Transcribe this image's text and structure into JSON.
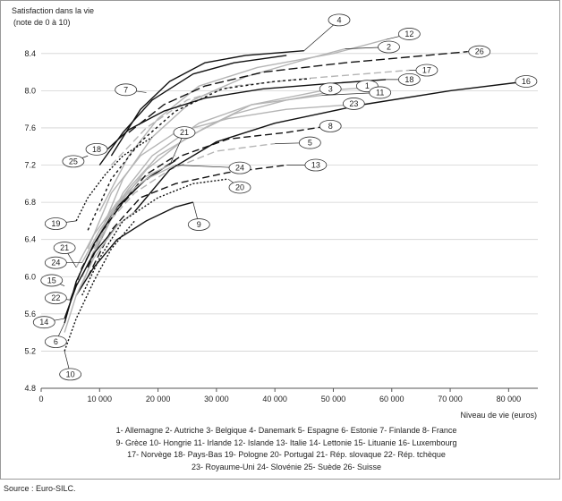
{
  "chart_data": {
    "type": "line",
    "title": "",
    "ylabel_line1": "Satisfaction dans la vie",
    "ylabel_line2": "(note de 0 à 10)",
    "xlabel": "Niveau de vie (euros)",
    "xlim": [
      0,
      85000
    ],
    "ylim": [
      4.8,
      8.6
    ],
    "x_ticks": [
      0,
      10000,
      20000,
      30000,
      40000,
      50000,
      60000,
      70000,
      80000
    ],
    "x_tick_labels": [
      "0",
      "10 000",
      "20 000",
      "30 000",
      "40 000",
      "50 000",
      "60 000",
      "70 000",
      "80 000"
    ],
    "y_ticks": [
      4.8,
      5.2,
      5.6,
      6.0,
      6.4,
      6.8,
      7.2,
      7.6,
      8.0,
      8.4
    ],
    "y_tick_labels": [
      "4.8",
      "5.2",
      "5.6",
      "6.0",
      "6.4",
      "6.8",
      "7.2",
      "7.6",
      "8.0",
      "8.4"
    ],
    "grid": "horizontal",
    "series": [
      {
        "id": "1",
        "name": "Allemagne",
        "color": "#b5b5b5",
        "dash": "",
        "points": [
          [
            7000,
            5.9
          ],
          [
            11000,
            6.6
          ],
          [
            15000,
            6.95
          ],
          [
            20000,
            7.3
          ],
          [
            28000,
            7.6
          ],
          [
            36000,
            7.85
          ],
          [
            48000,
            8.0
          ],
          [
            55000,
            8.03
          ]
        ],
        "label_pos": [
          55800,
          8.05
        ]
      },
      {
        "id": "2",
        "name": "Autriche",
        "color": "#b5b5b5",
        "dash": "",
        "points": [
          [
            9000,
            6.3
          ],
          [
            14000,
            7.05
          ],
          [
            19000,
            7.5
          ],
          [
            26000,
            7.9
          ],
          [
            35000,
            8.15
          ],
          [
            46000,
            8.35
          ],
          [
            52000,
            8.45
          ]
        ],
        "label_pos": [
          59500,
          8.47
        ]
      },
      {
        "id": "3",
        "name": "Belgique",
        "color": "#b5b5b5",
        "dash": "",
        "points": [
          [
            8000,
            6.1
          ],
          [
            13000,
            6.75
          ],
          [
            18000,
            7.15
          ],
          [
            25000,
            7.5
          ],
          [
            33000,
            7.75
          ],
          [
            42000,
            7.9
          ],
          [
            49000,
            7.98
          ]
        ],
        "label_pos": [
          49500,
          8.02
        ]
      },
      {
        "id": "4",
        "name": "Danemark",
        "color": "#111111",
        "dash": "",
        "points": [
          [
            12000,
            7.3
          ],
          [
            17000,
            7.8
          ],
          [
            22000,
            8.1
          ],
          [
            28000,
            8.3
          ],
          [
            35000,
            8.38
          ],
          [
            45000,
            8.43
          ]
        ],
        "label_pos": [
          51000,
          8.76
        ]
      },
      {
        "id": "5",
        "name": "Espagne",
        "color": "#b5b5b5",
        "dash": "8 4",
        "points": [
          [
            7000,
            6.0
          ],
          [
            11000,
            6.55
          ],
          [
            16000,
            6.9
          ],
          [
            22000,
            7.15
          ],
          [
            30000,
            7.35
          ],
          [
            40000,
            7.43
          ]
        ],
        "label_pos": [
          46000,
          7.44
        ]
      },
      {
        "id": "6",
        "name": "Estonie",
        "color": "#111111",
        "dash": "",
        "points": [
          [
            4000,
            5.5
          ],
          [
            6000,
            5.95
          ],
          [
            9000,
            6.35
          ],
          [
            13000,
            6.75
          ],
          [
            18000,
            7.05
          ],
          [
            23000,
            7.25
          ]
        ],
        "label_pos": [
          2500,
          5.3
        ]
      },
      {
        "id": "7",
        "name": "Finlande",
        "color": "#111111",
        "dash": "",
        "points": [
          [
            10000,
            7.2
          ],
          [
            14000,
            7.55
          ],
          [
            19000,
            7.9
          ],
          [
            26000,
            8.18
          ],
          [
            33000,
            8.3
          ],
          [
            42000,
            8.38
          ]
        ],
        "label_pos": [
          14500,
          8.01
        ]
      },
      {
        "id": "8",
        "name": "France",
        "color": "#111111",
        "dash": "8 4",
        "points": [
          [
            8000,
            6.1
          ],
          [
            12000,
            6.65
          ],
          [
            17000,
            7.0
          ],
          [
            24000,
            7.3
          ],
          [
            32000,
            7.48
          ],
          [
            42000,
            7.55
          ],
          [
            49000,
            7.62
          ]
        ],
        "label_pos": [
          49500,
          7.62
        ]
      },
      {
        "id": "9",
        "name": "Grèce",
        "color": "#111111",
        "dash": "",
        "points": [
          [
            6000,
            5.8
          ],
          [
            9000,
            6.1
          ],
          [
            13000,
            6.4
          ],
          [
            18000,
            6.6
          ],
          [
            23000,
            6.75
          ],
          [
            26000,
            6.8
          ]
        ],
        "label_pos": [
          27000,
          6.56
        ]
      },
      {
        "id": "10",
        "name": "Hongrie",
        "color": "#111111",
        "dash": "2 2",
        "points": [
          [
            4000,
            5.2
          ],
          [
            6000,
            5.55
          ],
          [
            9000,
            5.95
          ],
          [
            12000,
            6.3
          ],
          [
            16000,
            6.6
          ]
        ],
        "label_pos": [
          5000,
          4.95
        ]
      },
      {
        "id": "11",
        "name": "Irlande",
        "color": "#b5b5b5",
        "dash": "",
        "points": [
          [
            9000,
            6.25
          ],
          [
            14000,
            6.9
          ],
          [
            19000,
            7.3
          ],
          [
            27000,
            7.65
          ],
          [
            36000,
            7.85
          ],
          [
            48000,
            7.95
          ]
        ],
        "label_pos": [
          58000,
          7.98
        ]
      },
      {
        "id": "12",
        "name": "Islande",
        "color": "#b5b5b5",
        "dash": "",
        "points": [
          [
            10000,
            6.7
          ],
          [
            15000,
            7.3
          ],
          [
            20000,
            7.7
          ],
          [
            27000,
            8.05
          ],
          [
            37000,
            8.25
          ],
          [
            50000,
            8.4
          ],
          [
            59000,
            8.55
          ]
        ],
        "label_pos": [
          63000,
          8.61
        ]
      },
      {
        "id": "13",
        "name": "Italie",
        "color": "#111111",
        "dash": "8 4",
        "points": [
          [
            8000,
            6.0
          ],
          [
            12000,
            6.5
          ],
          [
            17000,
            6.85
          ],
          [
            23000,
            7.0
          ],
          [
            32000,
            7.12
          ],
          [
            42000,
            7.2
          ]
        ],
        "label_pos": [
          47000,
          7.2
        ]
      },
      {
        "id": "14",
        "name": "Lettonie",
        "color": "#111111",
        "dash": "",
        "points": [
          [
            4000,
            5.55
          ],
          [
            6000,
            5.9
          ],
          [
            9000,
            6.25
          ],
          [
            13000,
            6.55
          ]
        ],
        "label_pos": [
          500,
          5.51
        ]
      },
      {
        "id": "15",
        "name": "Lituanie",
        "color": "#b5b5b5",
        "dash": "",
        "points": [
          [
            4000,
            5.4
          ],
          [
            6000,
            5.8
          ],
          [
            9000,
            6.2
          ],
          [
            13000,
            6.55
          ],
          [
            16000,
            6.7
          ]
        ],
        "label_pos": [
          1800,
          5.96
        ]
      },
      {
        "id": "16",
        "name": "Luxembourg",
        "color": "#111111",
        "dash": "",
        "points": [
          [
            16000,
            6.7
          ],
          [
            22000,
            7.15
          ],
          [
            30000,
            7.45
          ],
          [
            40000,
            7.65
          ],
          [
            55000,
            7.85
          ],
          [
            70000,
            8.0
          ],
          [
            83000,
            8.1
          ]
        ],
        "label_pos": [
          83000,
          8.1
        ]
      },
      {
        "id": "17",
        "name": "Norvège",
        "color": "#b5b5b5",
        "dash": "8 4",
        "points": [
          [
            12000,
            7.2
          ],
          [
            18000,
            7.6
          ],
          [
            25000,
            7.9
          ],
          [
            33000,
            8.05
          ],
          [
            45000,
            8.13
          ],
          [
            55000,
            8.18
          ],
          [
            63000,
            8.22
          ]
        ],
        "label_pos": [
          66000,
          8.22
        ]
      },
      {
        "id": "18",
        "name": "Pays-Bas",
        "color": "#111111",
        "dash": "",
        "points": [
          [
            11000,
            7.35
          ],
          [
            15000,
            7.58
          ],
          [
            21000,
            7.78
          ],
          [
            28000,
            7.92
          ],
          [
            38000,
            8.02
          ],
          [
            50000,
            8.08
          ],
          [
            59000,
            8.12
          ]
        ],
        "label_pos": [
          63000,
          8.12
        ]
      },
      {
        "id": "19",
        "name": "Pologne",
        "color": "#111111",
        "dash": "2 2",
        "points": [
          [
            6000,
            6.6
          ],
          [
            8000,
            6.85
          ],
          [
            11000,
            7.1
          ],
          [
            14000,
            7.3
          ],
          [
            19000,
            7.5
          ]
        ],
        "label_pos": [
          2500,
          6.57
        ]
      },
      {
        "id": "20",
        "name": "Portugal",
        "color": "#111111",
        "dash": "2 2",
        "points": [
          [
            7000,
            5.8
          ],
          [
            10000,
            6.2
          ],
          [
            14000,
            6.6
          ],
          [
            20000,
            6.85
          ],
          [
            26000,
            7.0
          ],
          [
            32000,
            7.05
          ]
        ],
        "label_pos": [
          34000,
          6.96
        ]
      },
      {
        "id": "21",
        "name": "Rép. slovaque",
        "color": "#b5b5b5",
        "dash": "",
        "points": [
          [
            6000,
            6.1
          ],
          [
            9000,
            6.45
          ],
          [
            13000,
            6.8
          ],
          [
            17000,
            7.05
          ],
          [
            22000,
            7.2
          ]
        ],
        "label_pos": [
          4000,
          6.31
        ]
      },
      {
        "id": "22",
        "name": "Rép. tchèque",
        "color": "#111111",
        "dash": "8 4",
        "points": [
          [
            5000,
            5.75
          ],
          [
            7000,
            6.1
          ],
          [
            10000,
            6.45
          ],
          [
            14000,
            6.8
          ],
          [
            18000,
            7.1
          ],
          [
            23000,
            7.3
          ]
        ],
        "label_pos": [
          2500,
          5.77
        ]
      },
      {
        "id": "23",
        "name": "Royaume-Uni",
        "color": "#b5b5b5",
        "dash": "",
        "points": [
          [
            8000,
            6.3
          ],
          [
            12000,
            6.9
          ],
          [
            17000,
            7.3
          ],
          [
            23000,
            7.55
          ],
          [
            32000,
            7.7
          ],
          [
            42000,
            7.8
          ],
          [
            53000,
            7.85
          ]
        ],
        "label_pos": [
          53500,
          7.86
        ]
      },
      {
        "id": "24",
        "name": "Slovénie",
        "color": "#b5b5b5",
        "dash": "",
        "points": [
          [
            7000,
            6.15
          ],
          [
            10000,
            6.5
          ],
          [
            14000,
            6.85
          ],
          [
            18000,
            7.05
          ],
          [
            23000,
            7.2
          ]
        ],
        "label_pos": [
          2500,
          6.15
        ]
      },
      {
        "id": "25",
        "name": "Suède",
        "color": "#111111",
        "dash": "3 3",
        "points": [
          [
            8000,
            6.5
          ],
          [
            12000,
            7.05
          ],
          [
            17000,
            7.45
          ],
          [
            23000,
            7.78
          ],
          [
            31000,
            8.02
          ],
          [
            40000,
            8.1
          ],
          [
            46000,
            8.13
          ]
        ],
        "label_pos": [
          5500,
          7.24
        ]
      },
      {
        "id": "26",
        "name": "Suisse",
        "color": "#111111",
        "dash": "10 4",
        "points": [
          [
            15000,
            7.55
          ],
          [
            21000,
            7.85
          ],
          [
            28000,
            8.05
          ],
          [
            38000,
            8.2
          ],
          [
            52000,
            8.3
          ],
          [
            66000,
            8.38
          ],
          [
            73000,
            8.42
          ]
        ],
        "label_pos": [
          75000,
          8.42
        ]
      }
    ],
    "inline_labels": [
      {
        "text": "4",
        "x": 51000,
        "y": 8.76,
        "sx": 45000,
        "sy": 8.43
      },
      {
        "text": "12",
        "x": 63000,
        "y": 8.61,
        "sx": 59000,
        "sy": 8.55
      },
      {
        "text": "2",
        "x": 59500,
        "y": 8.47,
        "sx": 52000,
        "sy": 8.45
      },
      {
        "text": "26",
        "x": 75000,
        "y": 8.42,
        "sx": 73000,
        "sy": 8.42
      },
      {
        "text": "17",
        "x": 66000,
        "y": 8.22,
        "sx": 63000,
        "sy": 8.22
      },
      {
        "text": "18",
        "x": 63000,
        "y": 8.12,
        "sx": 59000,
        "sy": 8.12
      },
      {
        "text": "16",
        "x": 83000,
        "y": 8.1,
        "sx": 83000,
        "sy": 8.1
      },
      {
        "text": "1",
        "x": 55800,
        "y": 8.05,
        "sx": 55000,
        "sy": 8.03
      },
      {
        "text": "3",
        "x": 49500,
        "y": 8.02,
        "sx": 49000,
        "sy": 7.98
      },
      {
        "text": "11",
        "x": 58000,
        "y": 7.98,
        "sx": 48000,
        "sy": 7.95
      },
      {
        "text": "7",
        "x": 14500,
        "y": 8.01,
        "sx": 18000,
        "sy": 7.98
      },
      {
        "text": "23",
        "x": 53500,
        "y": 7.86,
        "sx": 53000,
        "sy": 7.85
      },
      {
        "text": "8",
        "x": 49500,
        "y": 7.62,
        "sx": 49000,
        "sy": 7.62
      },
      {
        "text": "21",
        "x": 24500,
        "y": 7.55,
        "sx": 22000,
        "sy": 7.2
      },
      {
        "text": "5",
        "x": 46000,
        "y": 7.44,
        "sx": 40000,
        "sy": 7.43
      },
      {
        "text": "18",
        "x": 9500,
        "y": 7.37,
        "sx": 11000,
        "sy": 7.35
      },
      {
        "text": "25",
        "x": 5500,
        "y": 7.24,
        "sx": 8000,
        "sy": 7.3
      },
      {
        "text": "13",
        "x": 47000,
        "y": 7.2,
        "sx": 42000,
        "sy": 7.2
      },
      {
        "text": "24",
        "x": 34000,
        "y": 7.17,
        "sx": 23000,
        "sy": 7.2
      },
      {
        "text": "20",
        "x": 34000,
        "y": 6.96,
        "sx": 32000,
        "sy": 7.05
      },
      {
        "text": "19",
        "x": 2500,
        "y": 6.57,
        "sx": 6000,
        "sy": 6.6
      },
      {
        "text": "9",
        "x": 27000,
        "y": 6.56,
        "sx": 26000,
        "sy": 6.8
      },
      {
        "text": "21",
        "x": 4000,
        "y": 6.31,
        "sx": 6000,
        "sy": 6.1
      },
      {
        "text": "24",
        "x": 2500,
        "y": 6.15,
        "sx": 7000,
        "sy": 6.15
      },
      {
        "text": "15",
        "x": 1800,
        "y": 5.96,
        "sx": 4000,
        "sy": 5.9
      },
      {
        "text": "22",
        "x": 2500,
        "y": 5.77,
        "sx": 5000,
        "sy": 5.75
      },
      {
        "text": "14",
        "x": 500,
        "y": 5.51,
        "sx": 4000,
        "sy": 5.55
      },
      {
        "text": "6",
        "x": 2500,
        "y": 5.3,
        "sx": 4000,
        "sy": 5.5
      },
      {
        "text": "10",
        "x": 5000,
        "y": 4.95,
        "sx": 4000,
        "sy": 5.2
      }
    ]
  },
  "legend_lines": [
    "1- Allemagne   2- Autriche   3- Belgique   4- Danemark   5- Espagne   6- Estonie   7- Finlande   8- France",
    "9- Grèce   10- Hongrie   11- Irlande   12- Islande   13- Italie   14- Lettonie   15- Lituanie   16- Luxembourg",
    "17- Norvège   18- Pays-Bas   19- Pologne   20- Portugal   21- Rép. slovaque   22- Rép. tchèque",
    "23- Royaume-Uni   24- Slovénie   25- Suède   26- Suisse"
  ],
  "source": "Source : Euro-SILC."
}
